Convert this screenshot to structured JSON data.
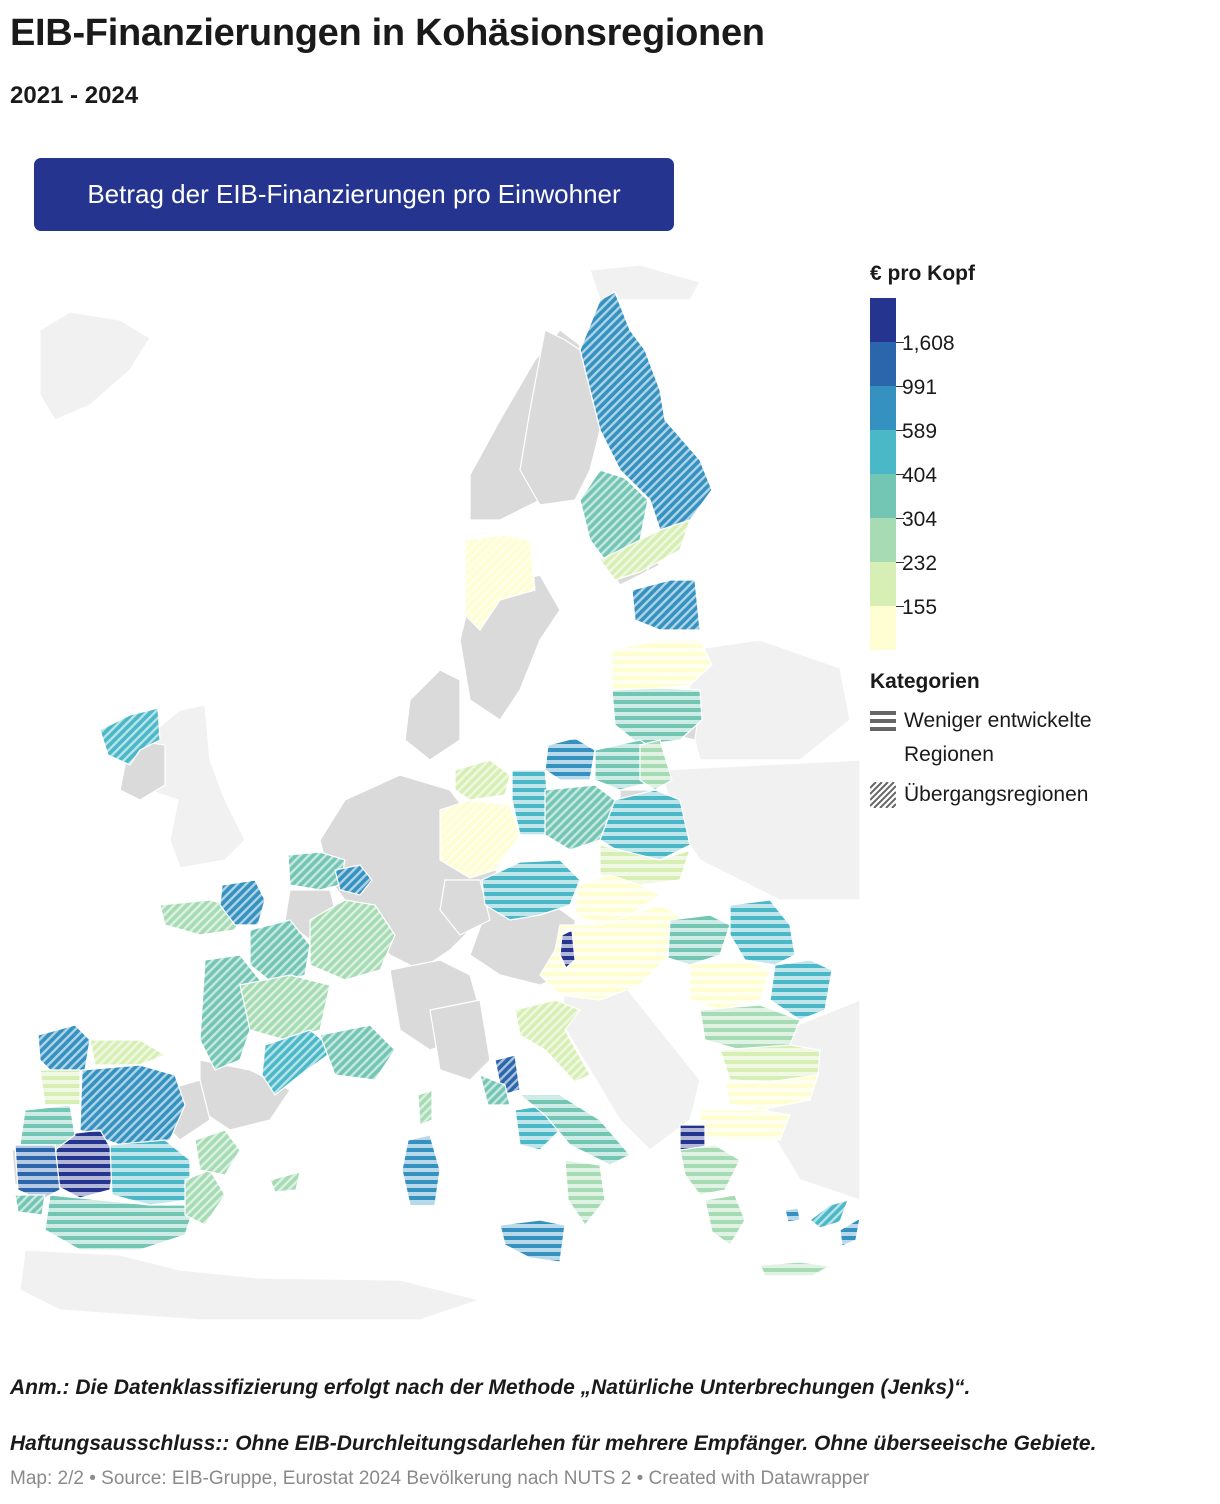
{
  "header": {
    "title": "EIB-Finanzierungen in Kohäsionsregionen",
    "subtitle": "2021 - 2024",
    "tab_label": "Betrag der EIB-Finanzierungen pro Einwohner"
  },
  "legend": {
    "title": "€ pro Kopf",
    "breaks": [
      "1,608",
      "991",
      "589",
      "404",
      "304",
      "232",
      "155"
    ],
    "colors": [
      "#25358f",
      "#2b65ac",
      "#3592c0",
      "#4bb8c8",
      "#74c6b4",
      "#a6dbb3",
      "#d7efb5",
      "#fefed2"
    ],
    "categories_title": "Kategorien",
    "categories": [
      {
        "label": "Weniger entwickelte Regionen",
        "pattern": "stripes"
      },
      {
        "label": "Übergangsregionen",
        "pattern": "hatch"
      }
    ]
  },
  "notes": {
    "note": "Anm.: Die Datenklassifizierung erfolgt nach der Methode „Natürliche Unterbrechungen (Jenks)“.",
    "disclaimer": "Haftungsausschluss:: Ohne EIB-Durchleitungsdarlehen für mehrere Empfänger. Ohne überseeische Gebiete.",
    "source": "Map: 2/2 • Source: EIB-Gruppe, Eurostat 2024 Bevölkerung nach NUTS 2 • Created with Datawrapper"
  },
  "map": {
    "background_color": "#f1f1f1",
    "other_region_color": "#dadada",
    "regions": [
      {
        "name": "Finnland Ost",
        "class": 2,
        "pattern": "hatch"
      },
      {
        "name": "Finnland Süd",
        "class": 4,
        "pattern": "hatch"
      },
      {
        "name": "Finnland Südost",
        "class": 6,
        "pattern": "hatch"
      },
      {
        "name": "Schweden Mitte",
        "class": 7,
        "pattern": "hatch"
      },
      {
        "name": "Estland",
        "class": 2,
        "pattern": "hatch"
      },
      {
        "name": "Lettland",
        "class": 7,
        "pattern": "stripes"
      },
      {
        "name": "Litauen",
        "class": 4,
        "pattern": "stripes"
      },
      {
        "name": "Irland Nordwest",
        "class": 3,
        "pattern": "hatch"
      },
      {
        "name": "Polen Nordwest",
        "class": 2,
        "pattern": "stripes"
      },
      {
        "name": "Polen Nord",
        "class": 4,
        "pattern": "stripes"
      },
      {
        "name": "Polen West",
        "class": 3,
        "pattern": "stripes"
      },
      {
        "name": "Polen Mitte",
        "class": 4,
        "pattern": "hatch"
      },
      {
        "name": "Polen Ost",
        "class": 3,
        "pattern": "stripes"
      },
      {
        "name": "Polen Nordost",
        "class": 5,
        "pattern": "stripes"
      },
      {
        "name": "Polen Südost",
        "class": 6,
        "pattern": "stripes"
      },
      {
        "name": "Ostdeutschland Nord",
        "class": 6,
        "pattern": "hatch"
      },
      {
        "name": "Ostdeutschland",
        "class": 7,
        "pattern": "hatch"
      },
      {
        "name": "Tschechien",
        "class": 3,
        "pattern": "stripes"
      },
      {
        "name": "Slowakei",
        "class": 7,
        "pattern": "stripes"
      },
      {
        "name": "Ungarn",
        "class": 7,
        "pattern": "stripes"
      },
      {
        "name": "Wien-Grenze",
        "class": 0,
        "pattern": "stripes"
      },
      {
        "name": "Rumänien Nord",
        "class": 4,
        "pattern": "stripes"
      },
      {
        "name": "Rumänien Nordwest",
        "class": 3,
        "pattern": "stripes"
      },
      {
        "name": "Rumänien Mitte",
        "class": 7,
        "pattern": "stripes"
      },
      {
        "name": "Rumänien Ost",
        "class": 3,
        "pattern": "stripes"
      },
      {
        "name": "Rumänien Süd",
        "class": 5,
        "pattern": "stripes"
      },
      {
        "name": "Bulgarien Nord",
        "class": 6,
        "pattern": "stripes"
      },
      {
        "name": "Bulgarien Süd",
        "class": 7,
        "pattern": "stripes"
      },
      {
        "name": "Kroatien",
        "class": 6,
        "pattern": "hatch"
      },
      {
        "name": "Griechenland Nord",
        "class": 7,
        "pattern": "stripes"
      },
      {
        "name": "Westmakedonien",
        "class": 0,
        "pattern": "stripes"
      },
      {
        "name": "Griechenland Mitte",
        "class": 5,
        "pattern": "stripes"
      },
      {
        "name": "Peloponnes",
        "class": 5,
        "pattern": "stripes"
      },
      {
        "name": "Kreta",
        "class": 5,
        "pattern": "stripes"
      },
      {
        "name": "Zypern",
        "class": 3,
        "pattern": "hatch"
      },
      {
        "name": "Ägäis",
        "class": 2,
        "pattern": "stripes"
      },
      {
        "name": "Frankreich Nord",
        "class": 4,
        "pattern": "hatch"
      },
      {
        "name": "Frankreich Nordost",
        "class": 2,
        "pattern": "hatch"
      },
      {
        "name": "Bretagne",
        "class": 5,
        "pattern": "hatch"
      },
      {
        "name": "Normandie",
        "class": 2,
        "pattern": "hatch"
      },
      {
        "name": "Zentralfrankreich",
        "class": 4,
        "pattern": "hatch"
      },
      {
        "name": "Burgund",
        "class": 5,
        "pattern": "hatch"
      },
      {
        "name": "Aquitanien",
        "class": 4,
        "pattern": "hatch"
      },
      {
        "name": "Limousin",
        "class": 5,
        "pattern": "hatch"
      },
      {
        "name": "Languedoc",
        "class": 3,
        "pattern": "hatch"
      },
      {
        "name": "Provence",
        "class": 4,
        "pattern": "hatch"
      },
      {
        "name": "Galicien",
        "class": 2,
        "pattern": "hatch"
      },
      {
        "name": "Asturien",
        "class": 6,
        "pattern": "hatch"
      },
      {
        "name": "Kastilien-León",
        "class": 2,
        "pattern": "hatch"
      },
      {
        "name": "Extremadura",
        "class": 0,
        "pattern": "stripes"
      },
      {
        "name": "Kastilien-La Mancha",
        "class": 3,
        "pattern": "stripes"
      },
      {
        "name": "Andalusien",
        "class": 4,
        "pattern": "stripes"
      },
      {
        "name": "Murcia",
        "class": 5,
        "pattern": "hatch"
      },
      {
        "name": "Valencia",
        "class": 5,
        "pattern": "hatch"
      },
      {
        "name": "Portugal Nord",
        "class": 6,
        "pattern": "stripes"
      },
      {
        "name": "Portugal Mitte",
        "class": 4,
        "pattern": "stripes"
      },
      {
        "name": "Alentejo",
        "class": 1,
        "pattern": "stripes"
      },
      {
        "name": "Algarve",
        "class": 4,
        "pattern": "hatch"
      },
      {
        "name": "Abruzzen",
        "class": 1,
        "pattern": "hatch"
      },
      {
        "name": "Molise",
        "class": 4,
        "pattern": "hatch"
      },
      {
        "name": "Kampanien",
        "class": 3,
        "pattern": "stripes"
      },
      {
        "name": "Apulien",
        "class": 4,
        "pattern": "stripes"
      },
      {
        "name": "Kalabrien",
        "class": 5,
        "pattern": "stripes"
      },
      {
        "name": "Sizilien",
        "class": 2,
        "pattern": "stripes"
      },
      {
        "name": "Sardinien",
        "class": 2,
        "pattern": "stripes"
      },
      {
        "name": "Korsika",
        "class": 5,
        "pattern": "hatch"
      },
      {
        "name": "Balearen",
        "class": 5,
        "pattern": "hatch"
      }
    ]
  }
}
